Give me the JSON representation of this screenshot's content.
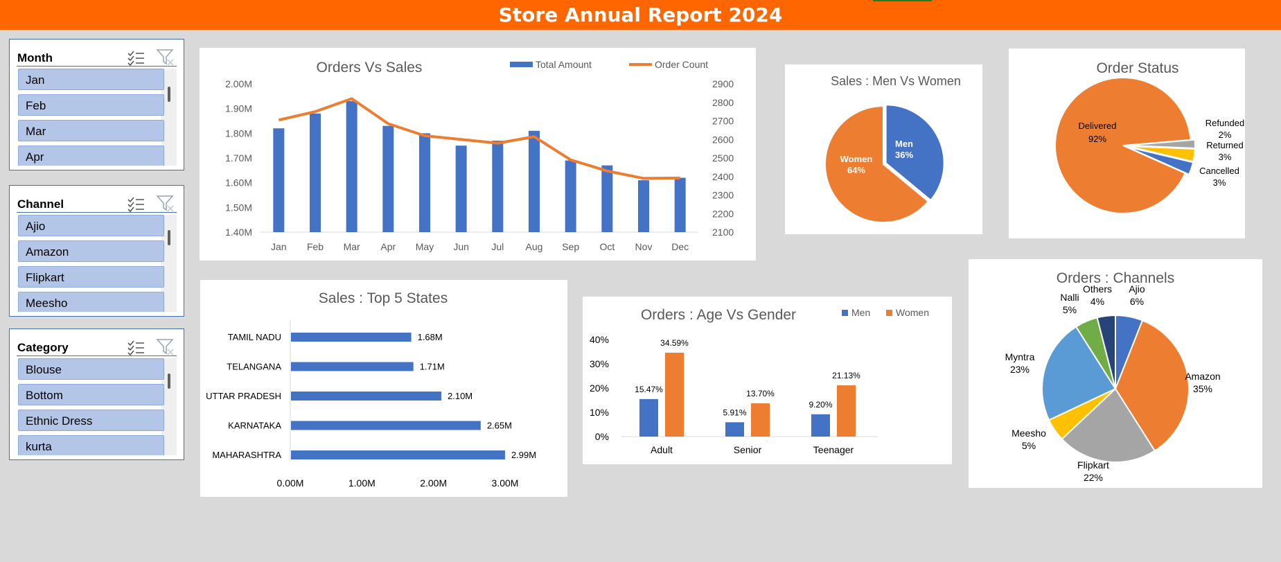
{
  "report": {
    "title": "Store Annual Report 2024"
  },
  "slicers": [
    {
      "title": "Month",
      "items": [
        "Jan",
        "Feb",
        "Mar",
        "Apr"
      ]
    },
    {
      "title": "Channel",
      "items": [
        "Ajio",
        "Amazon",
        "Flipkart",
        "Meesho"
      ]
    },
    {
      "title": "Category",
      "items": [
        "Blouse",
        "Bottom",
        "Ethnic Dress",
        "kurta"
      ]
    }
  ],
  "icons": {
    "multi_select": "multi-select-list-icon",
    "clear_filter": "clear-filter-icon"
  },
  "colors": {
    "banner": "#ff6600",
    "blue": "#4472c4",
    "orange": "#ed7d31",
    "gray": "#a5a5a5",
    "yellow": "#ffc000",
    "lightblue": "#5b9bd5",
    "green": "#70ad47",
    "navy": "#264478"
  },
  "chart_data": [
    {
      "id": "orders-vs-sales",
      "type": "bar+line",
      "title": "Orders Vs Sales",
      "categories": [
        "Jan",
        "Feb",
        "Mar",
        "Apr",
        "May",
        "Jun",
        "Jul",
        "Aug",
        "Sep",
        "Oct",
        "Nov",
        "Dec"
      ],
      "series": [
        {
          "name": "Total Amount",
          "type": "bar",
          "axis": "left",
          "values": [
            1.82,
            1.88,
            1.93,
            1.83,
            1.8,
            1.75,
            1.77,
            1.81,
            1.69,
            1.67,
            1.61,
            1.62
          ]
        },
        {
          "name": "Order Count",
          "type": "line",
          "axis": "right",
          "values": [
            2705,
            2750,
            2820,
            2685,
            2620,
            2600,
            2580,
            2615,
            2490,
            2430,
            2390,
            2392
          ]
        }
      ],
      "y_left": {
        "min": 1.4,
        "max": 2.0,
        "ticks": [
          "2.00M",
          "1.90M",
          "1.80M",
          "1.70M",
          "1.60M",
          "1.50M",
          "1.40M"
        ]
      },
      "y_right": {
        "min": 2100,
        "max": 2900,
        "ticks": [
          "2900",
          "2800",
          "2700",
          "2600",
          "2500",
          "2400",
          "2300",
          "2200",
          "2100"
        ]
      },
      "legend": "top-right"
    },
    {
      "id": "sales-men-vs-women",
      "type": "pie",
      "title": "Sales : Men Vs Women",
      "slices": [
        {
          "label": "Men",
          "pct_label": "36%",
          "value": 36
        },
        {
          "label": "Women",
          "pct_label": "64%",
          "value": 64
        }
      ]
    },
    {
      "id": "order-status",
      "type": "pie",
      "title": "Order Status",
      "slices": [
        {
          "label": "Delivered",
          "pct_label": "92%",
          "value": 92
        },
        {
          "label": "Refunded",
          "pct_label": "2%",
          "value": 2
        },
        {
          "label": "Returned",
          "pct_label": "3%",
          "value": 3
        },
        {
          "label": "Cancelled",
          "pct_label": "3%",
          "value": 3
        }
      ]
    },
    {
      "id": "sales-top-5-states",
      "type": "bar",
      "orientation": "horizontal",
      "title": "Sales : Top 5 States",
      "categories": [
        "TAMIL NADU",
        "TELANGANA",
        "UTTAR PRADESH",
        "KARNATAKA",
        "MAHARASHTRA"
      ],
      "values": [
        1.68,
        1.71,
        2.1,
        2.65,
        2.99
      ],
      "value_labels": [
        "1.68M",
        "1.71M",
        "2.10M",
        "2.65M",
        "2.99M"
      ],
      "x_ticks": [
        "0.00M",
        "1.00M",
        "2.00M",
        "3.00M"
      ],
      "xlim": [
        0,
        3.0
      ]
    },
    {
      "id": "orders-age-vs-gender",
      "type": "bar",
      "title": "Orders : Age Vs Gender",
      "categories": [
        "Adult",
        "Senior",
        "Teenager"
      ],
      "series": [
        {
          "name": "Men",
          "values": [
            15.47,
            5.91,
            9.2
          ],
          "labels": [
            "15.47%",
            "5.91%",
            "9.20%"
          ]
        },
        {
          "name": "Women",
          "values": [
            34.59,
            13.7,
            21.13
          ],
          "labels": [
            "34.59%",
            "13.70%",
            "21.13%"
          ]
        }
      ],
      "y_ticks": [
        "40%",
        "30%",
        "20%",
        "10%",
        "0%"
      ],
      "ylim": [
        0,
        40
      ],
      "legend": "top-right"
    },
    {
      "id": "orders-channels",
      "type": "pie",
      "title": "Orders : Channels",
      "slices": [
        {
          "label": "Ajio",
          "pct_label": "6%",
          "value": 6
        },
        {
          "label": "Amazon",
          "pct_label": "35%",
          "value": 35
        },
        {
          "label": "Flipkart",
          "pct_label": "22%",
          "value": 22
        },
        {
          "label": "Meesho",
          "pct_label": "5%",
          "value": 5
        },
        {
          "label": "Myntra",
          "pct_label": "23%",
          "value": 23
        },
        {
          "label": "Nalli",
          "pct_label": "5%",
          "value": 5
        },
        {
          "label": "Others",
          "pct_label": "4%",
          "value": 4
        }
      ]
    }
  ]
}
